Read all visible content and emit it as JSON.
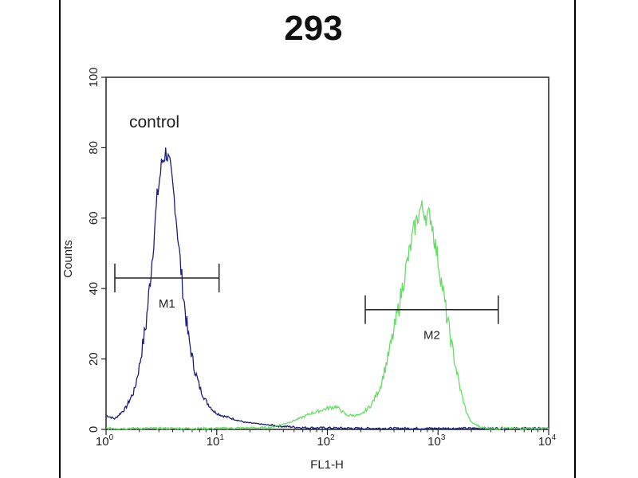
{
  "chart_data": {
    "type": "line",
    "title": "293",
    "xlabel": "FL1-H",
    "ylabel": "Counts",
    "x_scale": "log",
    "xlim": [
      1,
      10000
    ],
    "ylim": [
      0,
      100
    ],
    "x_ticks": [
      {
        "base": "10",
        "exp": "0",
        "value": 1
      },
      {
        "base": "10",
        "exp": "1",
        "value": 10
      },
      {
        "base": "10",
        "exp": "2",
        "value": 100
      },
      {
        "base": "10",
        "exp": "3",
        "value": 1000
      },
      {
        "base": "10",
        "exp": "4",
        "value": 10000
      }
    ],
    "y_ticks": [
      "0",
      "20",
      "40",
      "60",
      "80",
      "100"
    ],
    "annotation": "control",
    "grid": false,
    "series": [
      {
        "color": "#1c1f7a",
        "x": [
          1.0,
          1.2,
          1.5,
          1.8,
          2.0,
          2.3,
          2.6,
          2.9,
          3.2,
          3.5,
          3.8,
          4.2,
          4.6,
          5.0,
          5.5,
          6.2,
          7.0,
          8.0,
          9.5,
          11,
          14,
          18,
          25,
          35,
          60,
          200,
          1000,
          10000
        ],
        "y": [
          4,
          3,
          6,
          11,
          18,
          30,
          48,
          66,
          76,
          79,
          74,
          64,
          50,
          38,
          27,
          18,
          12,
          8,
          5,
          4,
          3,
          2,
          1.5,
          1,
          0.5,
          0.3,
          0.3,
          0.3
        ]
      },
      {
        "color": "#66dd66",
        "x": [
          1,
          10,
          30,
          40,
          50,
          60,
          70,
          80,
          100,
          120,
          150,
          200,
          250,
          300,
          350,
          400,
          450,
          500,
          550,
          600,
          650,
          700,
          750,
          800,
          850,
          900,
          950,
          1000,
          1100,
          1200,
          1400,
          1600,
          1800,
          2000,
          2500,
          3000,
          5000,
          10000
        ],
        "y": [
          0.3,
          0.3,
          0.5,
          1.5,
          2.5,
          3.5,
          4.5,
          5,
          6,
          6.5,
          4,
          4,
          7,
          12,
          20,
          28,
          36,
          44,
          50,
          56,
          60,
          63,
          62,
          60,
          61,
          57,
          52,
          48,
          40,
          32,
          20,
          11,
          5,
          2,
          0.5,
          0.3,
          0.3,
          0.3
        ]
      }
    ],
    "markers": [
      {
        "label": "M1",
        "x_start": 1.2,
        "x_end": 10.5,
        "y": 43,
        "color": "#222222"
      },
      {
        "label": "M2",
        "x_start": 220,
        "x_end": 3500,
        "y": 34,
        "color": "#222222"
      }
    ]
  }
}
